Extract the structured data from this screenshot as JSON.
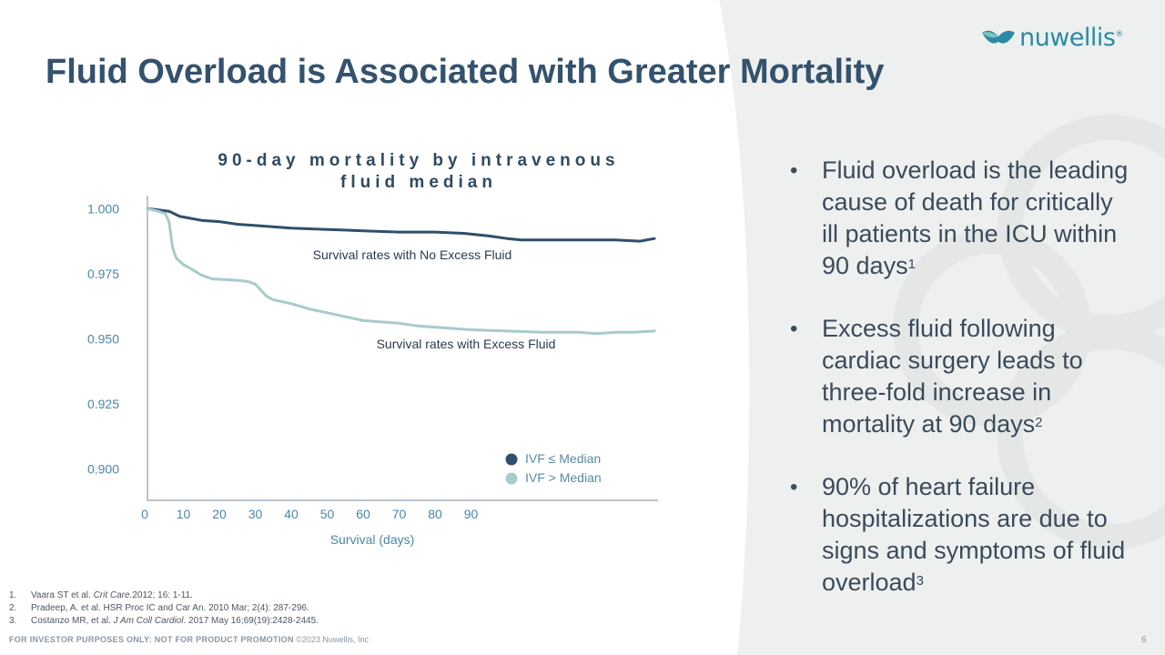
{
  "brand": {
    "name": "nuwellis",
    "registered": "®"
  },
  "title": "Fluid Overload is Associated with Greater Mortality",
  "chart_data": {
    "type": "line",
    "title": "90-day mortality by intravenous fluid median",
    "title_lines": [
      "90-day mortality by intravenous",
      "fluid median"
    ],
    "xlabel": "Survival (days)",
    "ylabel": "",
    "xlim": [
      0,
      142
    ],
    "ylim": [
      0.888,
      1.005
    ],
    "x_ticks": [
      0,
      10,
      20,
      30,
      40,
      50,
      60,
      70,
      80,
      90
    ],
    "y_ticks": [
      1.0,
      0.975,
      0.95,
      0.925,
      0.9
    ],
    "y_tick_labels": [
      "1.000",
      "0.975",
      "0.950",
      "0.925",
      "0.900"
    ],
    "legend_position": "bottom-right",
    "series": [
      {
        "name": "IVF ≤ Median",
        "color": "#2f4f6b",
        "annotation": "Survival rates with No Excess Fluid",
        "points": [
          [
            0,
            1.0
          ],
          [
            3,
            0.9995
          ],
          [
            6,
            0.999
          ],
          [
            9,
            0.997
          ],
          [
            15,
            0.9955
          ],
          [
            20,
            0.995
          ],
          [
            25,
            0.994
          ],
          [
            30,
            0.9935
          ],
          [
            40,
            0.9925
          ],
          [
            50,
            0.992
          ],
          [
            60,
            0.9915
          ],
          [
            70,
            0.991
          ],
          [
            80,
            0.991
          ],
          [
            88,
            0.9905
          ],
          [
            95,
            0.9895
          ],
          [
            100,
            0.9885
          ],
          [
            104,
            0.988
          ],
          [
            110,
            0.988
          ],
          [
            120,
            0.988
          ],
          [
            130,
            0.988
          ],
          [
            137,
            0.9875
          ],
          [
            141,
            0.9885
          ]
        ]
      },
      {
        "name": "IVF > Median",
        "color": "#a8cbcb",
        "annotation": "Survival rates with Excess Fluid",
        "points": [
          [
            0,
            1.0
          ],
          [
            3,
            0.999
          ],
          [
            5,
            0.998
          ],
          [
            6,
            0.995
          ],
          [
            7,
            0.985
          ],
          [
            8,
            0.981
          ],
          [
            10,
            0.9785
          ],
          [
            12,
            0.977
          ],
          [
            15,
            0.9745
          ],
          [
            18,
            0.973
          ],
          [
            25,
            0.9725
          ],
          [
            28,
            0.972
          ],
          [
            30,
            0.971
          ],
          [
            31,
            0.9695
          ],
          [
            32,
            0.968
          ],
          [
            33,
            0.9665
          ],
          [
            35,
            0.965
          ],
          [
            40,
            0.9635
          ],
          [
            45,
            0.9615
          ],
          [
            50,
            0.96
          ],
          [
            55,
            0.9585
          ],
          [
            60,
            0.957
          ],
          [
            65,
            0.9565
          ],
          [
            70,
            0.956
          ],
          [
            75,
            0.955
          ],
          [
            80,
            0.9545
          ],
          [
            90,
            0.9535
          ],
          [
            100,
            0.953
          ],
          [
            110,
            0.9525
          ],
          [
            120,
            0.9525
          ],
          [
            125,
            0.952
          ],
          [
            130,
            0.9525
          ],
          [
            135,
            0.9525
          ],
          [
            141,
            0.953
          ]
        ]
      }
    ]
  },
  "bullets": [
    {
      "text": "Fluid overload is the leading cause of death for critically ill patients in the ICU within 90 days",
      "sup": "1"
    },
    {
      "text": "Excess fluid following cardiac surgery leads to three-fold increase in mortality at 90 days",
      "sup": "2"
    },
    {
      "text": "90% of heart failure hospitalizations are due to signs and symptoms of fluid overload",
      "sup": "3"
    }
  ],
  "references": [
    {
      "num": "1.",
      "before": "Vaara ST et al. ",
      "italic": "Crit Care.",
      "after": "2012; 16: 1-11."
    },
    {
      "num": "2.",
      "before": "Pradeep, A. et al. HSR Proc IC and Car An. 2010 Mar; 2(4): 287-296.",
      "italic": "",
      "after": ""
    },
    {
      "num": "3.",
      "before": "Costanzo MR, et al. ",
      "italic": "J Am Coll Cardiol",
      "after": ". 2017 May 16;69(19):2428-2445."
    }
  ],
  "footer": {
    "disclaimer": "FOR INVESTOR PURPOSES ONLY: NOT FOR PRODUCT PROMOTION",
    "copyright": "©2023 Nuwellis, Inc",
    "page_number": "6"
  }
}
